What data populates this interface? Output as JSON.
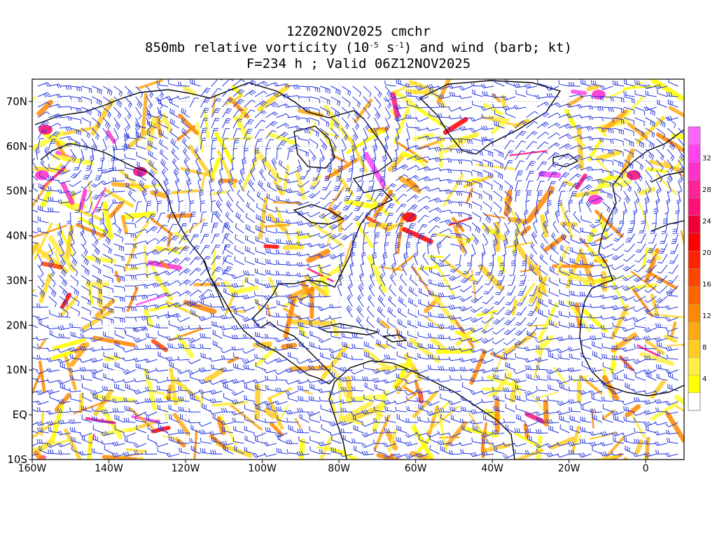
{
  "title": {
    "line1": "12Z02NOV2025 cmchr",
    "line2_prefix": "850mb relative vorticity (10",
    "line2_exp1": "-5",
    "line2_mid": " s",
    "line2_exp2": "-1",
    "line2_suffix": ") and wind (barb; kt)",
    "line3": "F=234 h ; Valid 06Z12NOV2025"
  },
  "map": {
    "lat_labels": [
      "70N",
      "60N",
      "50N",
      "40N",
      "30N",
      "20N",
      "10N",
      "EQ",
      "10S"
    ],
    "lat_values": [
      70,
      60,
      50,
      40,
      30,
      20,
      10,
      0,
      -10
    ],
    "lon_labels": [
      "160W",
      "140W",
      "120W",
      "100W",
      "80W",
      "60W",
      "40W",
      "20W",
      "0"
    ],
    "lon_values": [
      -160,
      -140,
      -120,
      -100,
      -80,
      -60,
      -40,
      -20,
      0
    ],
    "lon_range": [
      -160,
      10
    ],
    "lat_range": [
      -10,
      75
    ],
    "barb_color": "#2233dd",
    "coast_color": "#000000"
  },
  "colorbar": {
    "labels": [
      "4",
      "8",
      "12",
      "16",
      "20",
      "24",
      "28",
      "32"
    ],
    "label_values": [
      4,
      8,
      12,
      16,
      20,
      24,
      28,
      32
    ],
    "colors": [
      "#ffffff",
      "#ffff00",
      "#ffee44",
      "#ffcc22",
      "#ffaa11",
      "#ff8800",
      "#ff6600",
      "#ff4400",
      "#ff2200",
      "#ff0000",
      "#ee0033",
      "#ff1177",
      "#ff2299",
      "#ff33cc",
      "#ff44ee",
      "#ff66ff"
    ],
    "range": [
      0,
      36
    ]
  }
}
